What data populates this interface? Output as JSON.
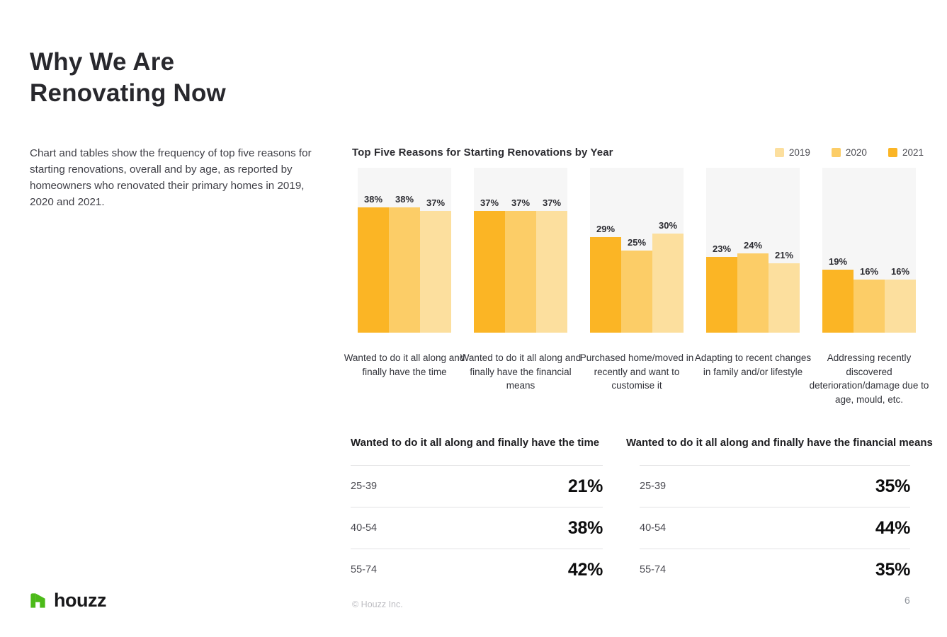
{
  "header": {
    "title_line1": "Why We Are",
    "title_line2": "Renovating Now",
    "description": "Chart and tables show the frequency of top five reasons for starting renovations, overall and by age, as reported by homeowners who renovated their primary homes in 2019, 2020 and 2021."
  },
  "chart_data": {
    "type": "bar",
    "title": "Top Five Reasons for Starting Renovations by Year",
    "categories": [
      "Wanted to do it all along and finally have the time",
      "Wanted to do it all along and finally have the financial means",
      "Purchased home/moved in recently and want to customise it",
      "Adapting to recent changes in family and/or lifestyle",
      "Addressing recently discovered deterioration/damage due to age, mould, etc."
    ],
    "series": [
      {
        "name": "2021",
        "color": "#FBB525",
        "values": [
          38,
          37,
          29,
          23,
          19
        ]
      },
      {
        "name": "2020",
        "color": "#FCCD67",
        "values": [
          38,
          37,
          25,
          24,
          16
        ]
      },
      {
        "name": "2019",
        "color": "#FCDF9E",
        "values": [
          37,
          37,
          30,
          21,
          16
        ]
      }
    ],
    "legend": [
      {
        "label": "2019",
        "color": "#FCDF9E"
      },
      {
        "label": "2020",
        "color": "#FCCD67"
      },
      {
        "label": "2021",
        "color": "#FBB525"
      }
    ],
    "value_suffix": "%",
    "ylim": [
      0,
      50
    ],
    "grid": false,
    "legend_position": "top-right",
    "band_background": "#F6F6F6"
  },
  "tables": [
    {
      "title": "Wanted to do it all along and finally have the time",
      "rows": [
        {
          "label": "25-39",
          "value": "21%"
        },
        {
          "label": "40-54",
          "value": "38%"
        },
        {
          "label": "55-74",
          "value": "42%"
        }
      ]
    },
    {
      "title": "Wanted to do it all along and finally have the financial means",
      "rows": [
        {
          "label": "25-39",
          "value": "35%"
        },
        {
          "label": "40-54",
          "value": "44%"
        },
        {
          "label": "55-74",
          "value": "35%"
        }
      ]
    }
  ],
  "footer": {
    "brand": "houzz",
    "brand_green": "#4CBA19",
    "copyright": "© Houzz Inc.",
    "page_number": "6"
  }
}
